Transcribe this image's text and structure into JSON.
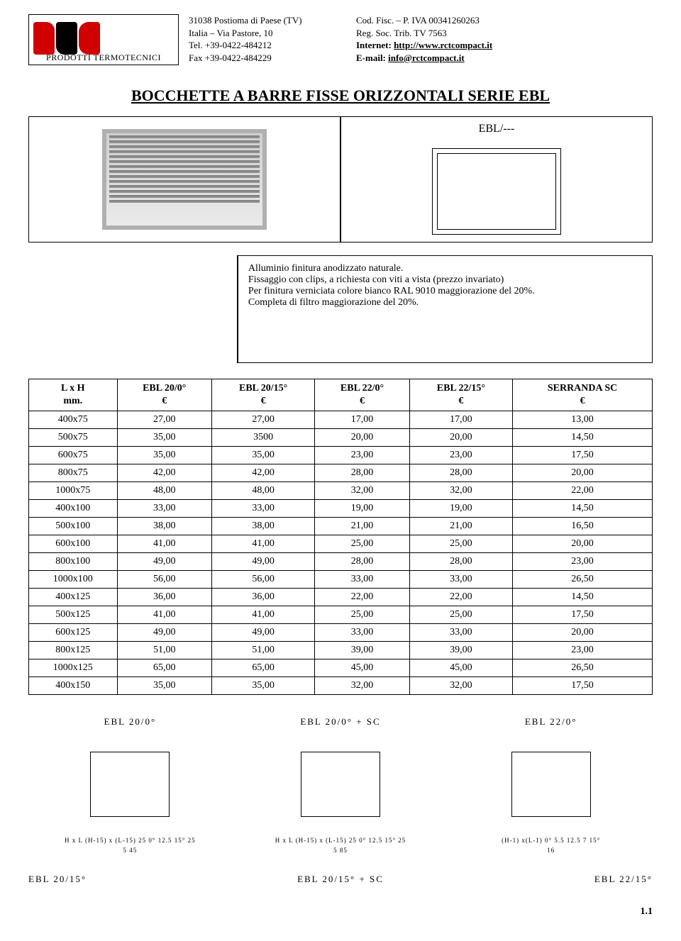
{
  "header": {
    "logo_tagline": "PRODOTTI TERMOTECNICI",
    "address": {
      "line1": "31038 Postioma di Paese (TV)",
      "line2": "Italia – Via Pastore, 10",
      "tel": "Tel. +39-0422-484212",
      "fax": "Fax +39-0422-484229"
    },
    "registration": {
      "fisc": "Cod. Fisc. – P. IVA 00341260263",
      "reg": "Reg. Soc. Trib. TV 7563",
      "internet_label": "Internet:",
      "internet": "http://www.rctcompact.it",
      "email_label": "E-mail:",
      "email": "info@rctcompact.it"
    }
  },
  "title": "BOCCHETTE A BARRE FISSE ORIZZONTALI SERIE EBL",
  "product_code": "EBL/---",
  "description": {
    "line1": "Alluminio finitura anodizzato naturale.",
    "line2": "Fissaggio con clips, a richiesta con viti a vista (prezzo invariato)",
    "line3": "Per finitura verniciata colore bianco RAL 9010 maggiorazione del 20%.",
    "line4": "Completa di filtro maggiorazione del 20%."
  },
  "table": {
    "columns": [
      {
        "line1": "L x H",
        "line2": "mm."
      },
      {
        "line1": "EBL 20/0°",
        "line2": "€"
      },
      {
        "line1": "EBL 20/15°",
        "line2": "€"
      },
      {
        "line1": "EBL 22/0°",
        "line2": "€"
      },
      {
        "line1": "EBL 22/15°",
        "line2": "€"
      },
      {
        "line1": "SERRANDA SC",
        "line2": "€"
      }
    ],
    "rows": [
      [
        "400x75",
        "27,00",
        "27,00",
        "17,00",
        "17,00",
        "13,00"
      ],
      [
        "500x75",
        "35,00",
        "3500",
        "20,00",
        "20,00",
        "14,50"
      ],
      [
        "600x75",
        "35,00",
        "35,00",
        "23,00",
        "23,00",
        "17,50"
      ],
      [
        "800x75",
        "42,00",
        "42,00",
        "28,00",
        "28,00",
        "20,00"
      ],
      [
        "1000x75",
        "48,00",
        "48,00",
        "32,00",
        "32,00",
        "22,00"
      ],
      [
        "400x100",
        "33,00",
        "33,00",
        "19,00",
        "19,00",
        "14,50"
      ],
      [
        "500x100",
        "38,00",
        "38,00",
        "21,00",
        "21,00",
        "16,50"
      ],
      [
        "600x100",
        "41,00",
        "41,00",
        "25,00",
        "25,00",
        "20,00"
      ],
      [
        "800x100",
        "49,00",
        "49,00",
        "28,00",
        "28,00",
        "23,00"
      ],
      [
        "1000x100",
        "56,00",
        "56,00",
        "33,00",
        "33,00",
        "26,50"
      ],
      [
        "400x125",
        "36,00",
        "36,00",
        "22,00",
        "22,00",
        "14,50"
      ],
      [
        "500x125",
        "41,00",
        "41,00",
        "25,00",
        "25,00",
        "17,50"
      ],
      [
        "600x125",
        "49,00",
        "49,00",
        "33,00",
        "33,00",
        "20,00"
      ],
      [
        "800x125",
        "51,00",
        "51,00",
        "39,00",
        "39,00",
        "23,00"
      ],
      [
        "1000x125",
        "65,00",
        "65,00",
        "45,00",
        "45,00",
        "26,50"
      ],
      [
        "400x150",
        "35,00",
        "35,00",
        "32,00",
        "32,00",
        "17,50"
      ]
    ]
  },
  "diagrams": {
    "top": [
      {
        "title": "EBL 20/0°",
        "notes": [
          "H x L",
          "(H-15) x (L-15)",
          "25",
          "0°",
          "12.5",
          "15°",
          "25"
        ]
      },
      {
        "title": "EBL 20/0° + SC",
        "notes": [
          "H x L",
          "(H-15) x (L-15)",
          "25",
          "0°",
          "12.5",
          "15°",
          "25"
        ]
      },
      {
        "title": "EBL 22/0°",
        "notes": [
          "(H-1) x(L-1)",
          "0°",
          "5.5",
          "12.5 7",
          "15°"
        ]
      }
    ],
    "bottom_labels": [
      "EBL 20/15°",
      "EBL 20/15° + SC",
      "EBL 22/15°"
    ],
    "bottom_dims": [
      [
        "5",
        "45"
      ],
      [
        "5",
        "85"
      ],
      [
        "16"
      ]
    ]
  },
  "page_number": "1.1",
  "style": {
    "page_bg": "#ffffff",
    "text_color": "#000000",
    "accent_red": "#d00000",
    "border_color": "#000000",
    "font_family": "Times New Roman",
    "title_fontsize_pt": 16,
    "body_fontsize_pt": 10,
    "table_fontsize_pt": 10
  }
}
